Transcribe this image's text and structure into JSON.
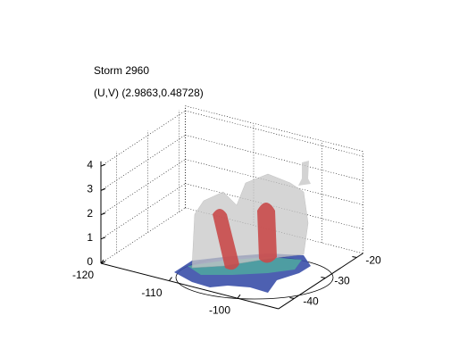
{
  "chart_data": {
    "type": "isosurface3d",
    "title": "Storm 2960",
    "subtitle": "(U,V) (2.9863,0.48728)",
    "xlim": [
      -120,
      -94
    ],
    "xticks": [
      -120,
      -110,
      -100
    ],
    "ylim": [
      -45,
      -18
    ],
    "yticks": [
      -40,
      -30,
      -20
    ],
    "zlim": [
      0,
      4.2
    ],
    "zticks": [
      0,
      1,
      2,
      3,
      4
    ],
    "grid": true
  }
}
